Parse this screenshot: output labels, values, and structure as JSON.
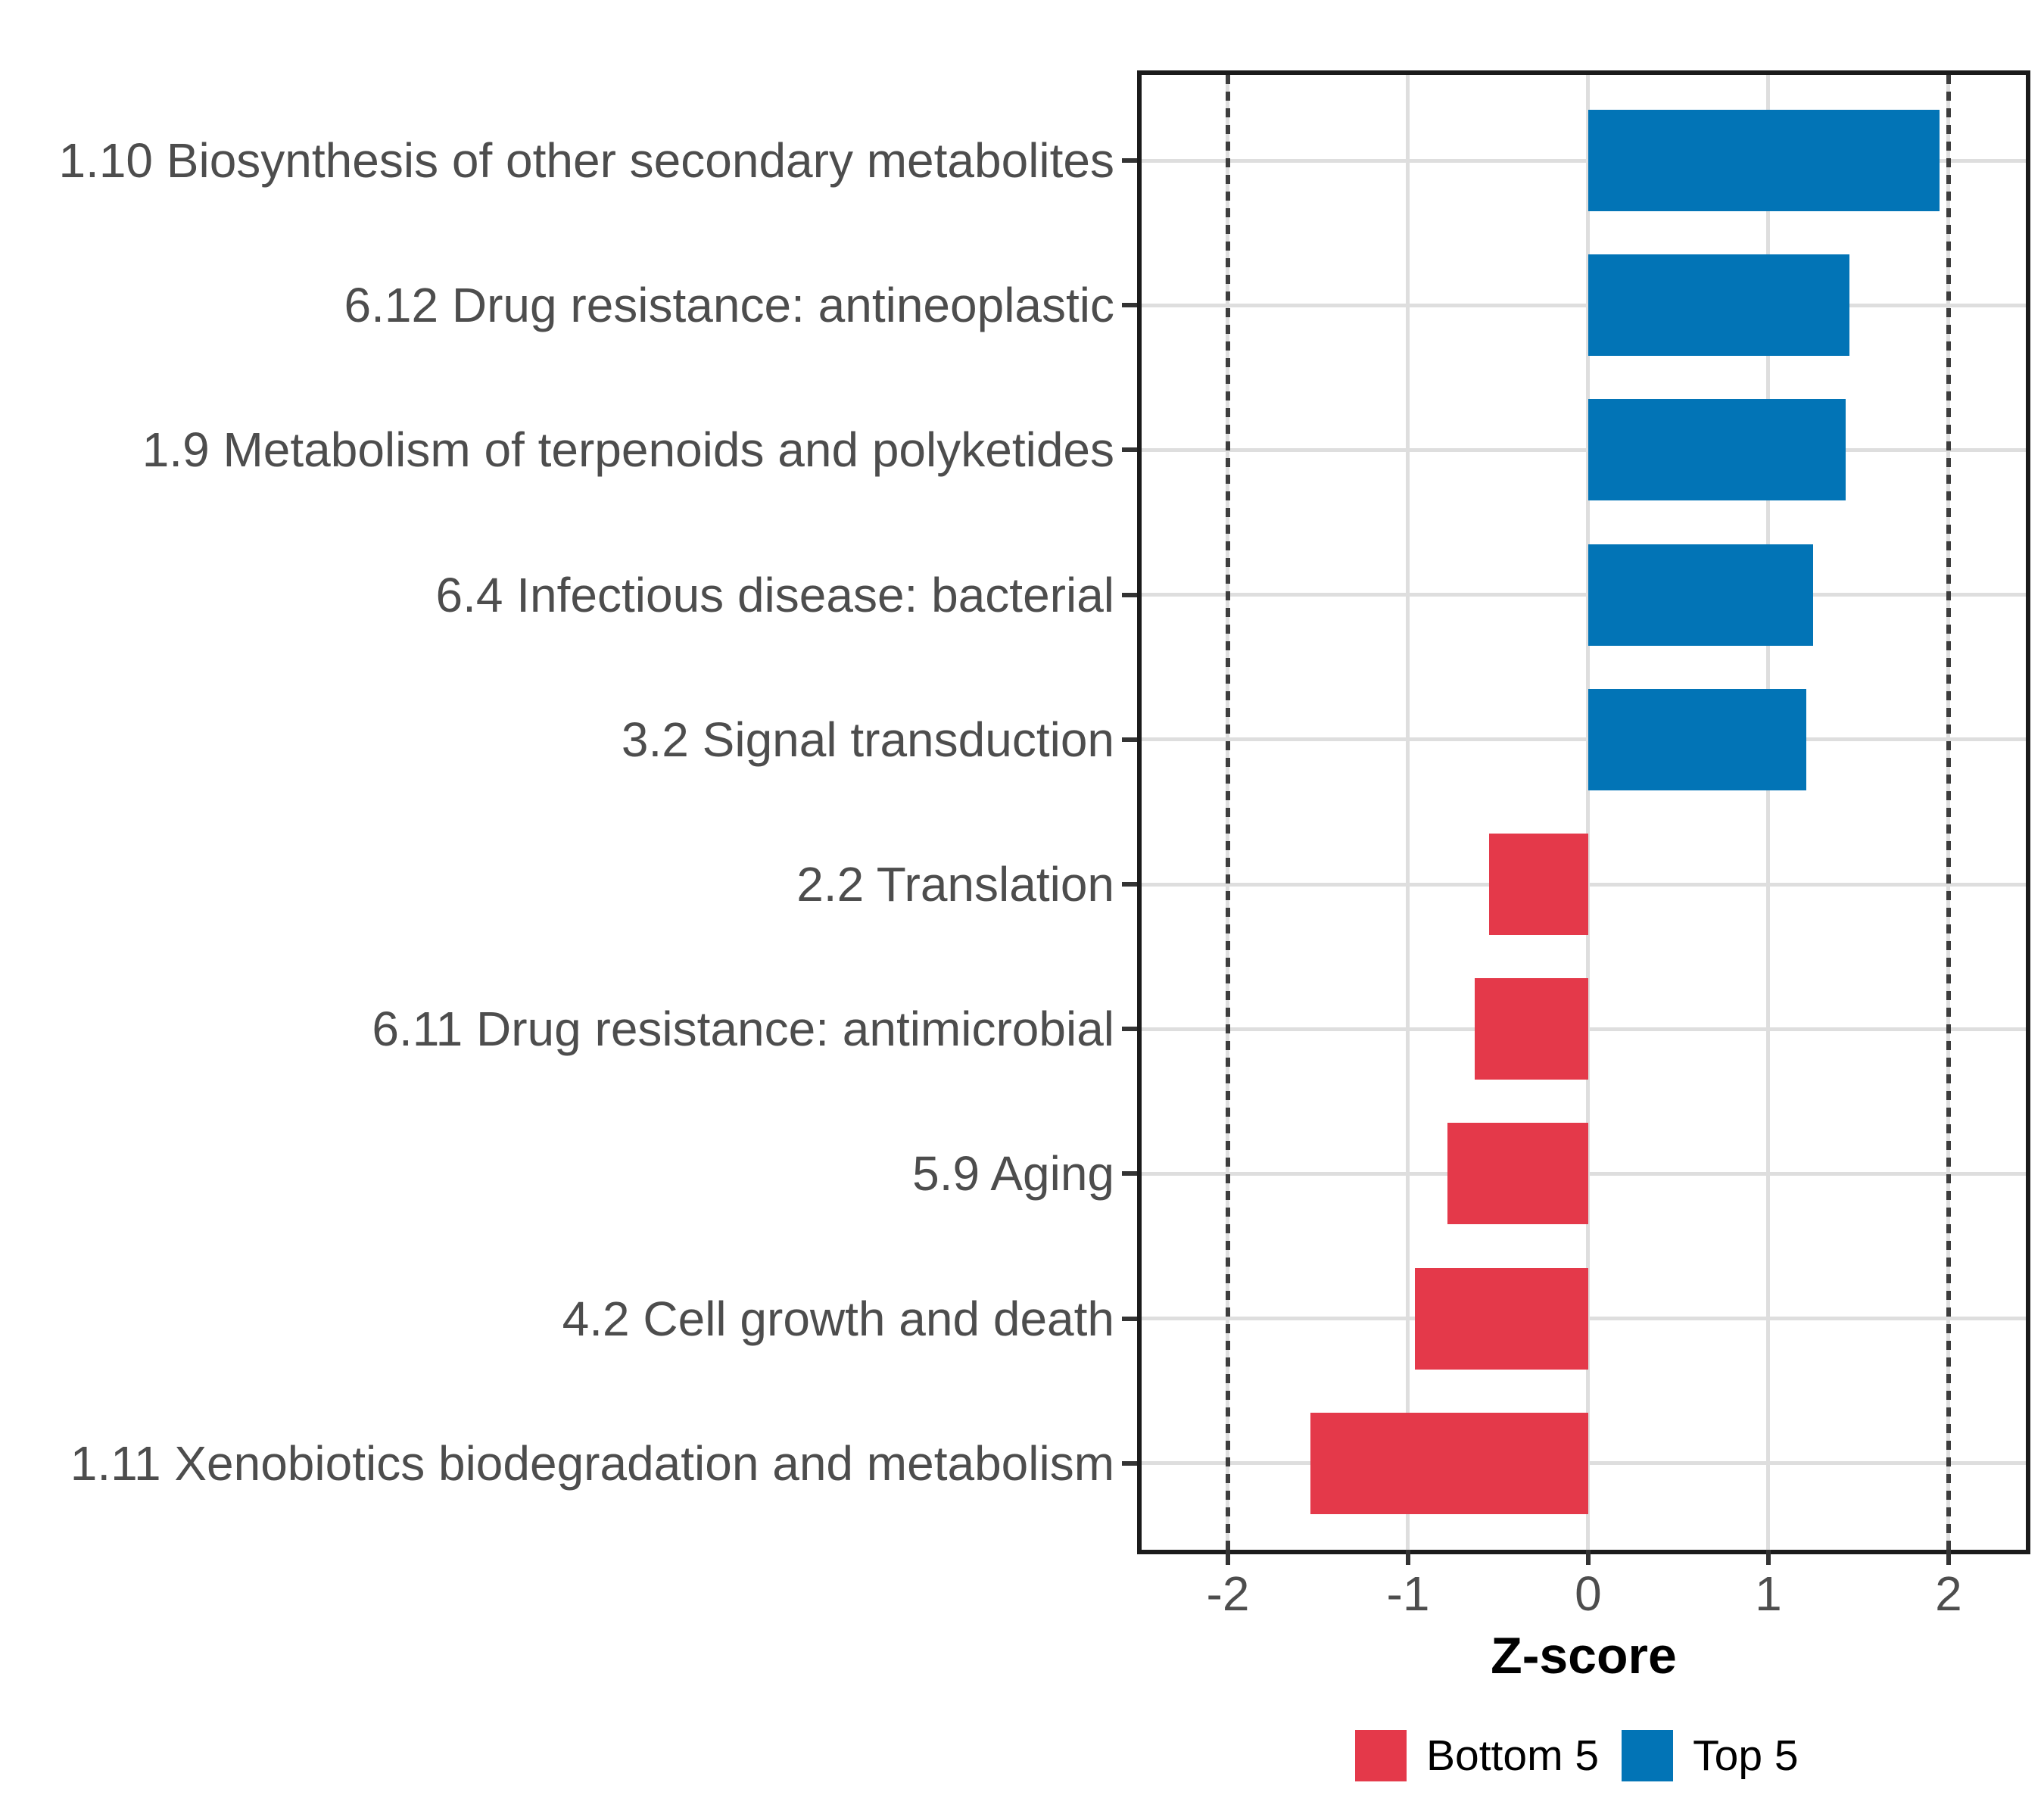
{
  "chart_data": {
    "type": "bar",
    "orientation": "horizontal",
    "title": "",
    "xlabel": "Z-score",
    "ylabel": "",
    "categories": [
      "1.10 Biosynthesis of other secondary metabolites",
      "6.12 Drug resistance: antineoplastic",
      "1.9 Metabolism of terpenoids and polyketides",
      "6.4 Infectious disease: bacterial",
      "3.2 Signal transduction",
      "2.2 Translation",
      "6.11 Drug resistance: antimicrobial",
      "5.9 Aging",
      "4.2 Cell growth and death",
      "1.11 Xenobiotics biodegradation and metabolism"
    ],
    "values": [
      1.95,
      1.45,
      1.43,
      1.25,
      1.21,
      -0.55,
      -0.63,
      -0.78,
      -0.96,
      -1.54
    ],
    "series": [
      {
        "name": "Top 5",
        "color": "#0274B6",
        "applies_to": "positive bars"
      },
      {
        "name": "Bottom 5",
        "color": "#E4394A",
        "applies_to": "negative bars"
      }
    ],
    "x_ticks": [
      -2,
      -1,
      0,
      1,
      2
    ],
    "x_tick_labels": [
      "-2",
      "-1",
      "0",
      "1",
      "2"
    ],
    "xlim": [
      -2.48,
      2.43
    ],
    "reference_lines": {
      "values": [
        -2,
        2
      ],
      "style": "dotted",
      "color": "#3D3D3D"
    },
    "grid": {
      "vertical_major": [
        -2,
        -1,
        0,
        1,
        2
      ],
      "horizontal_per_category": true,
      "color": "#DEDEDE"
    },
    "legend": {
      "position": "bottom-center",
      "items": [
        {
          "label": "Bottom 5",
          "color": "#E4394A"
        },
        {
          "label": "Top 5",
          "color": "#0274B6"
        }
      ]
    },
    "colors": {
      "positive": "#0274B6",
      "negative": "#E4394A",
      "axis_text": "#4D4D4D",
      "panel_border": "#1B1B1B"
    },
    "background": "#FFFFFF"
  }
}
